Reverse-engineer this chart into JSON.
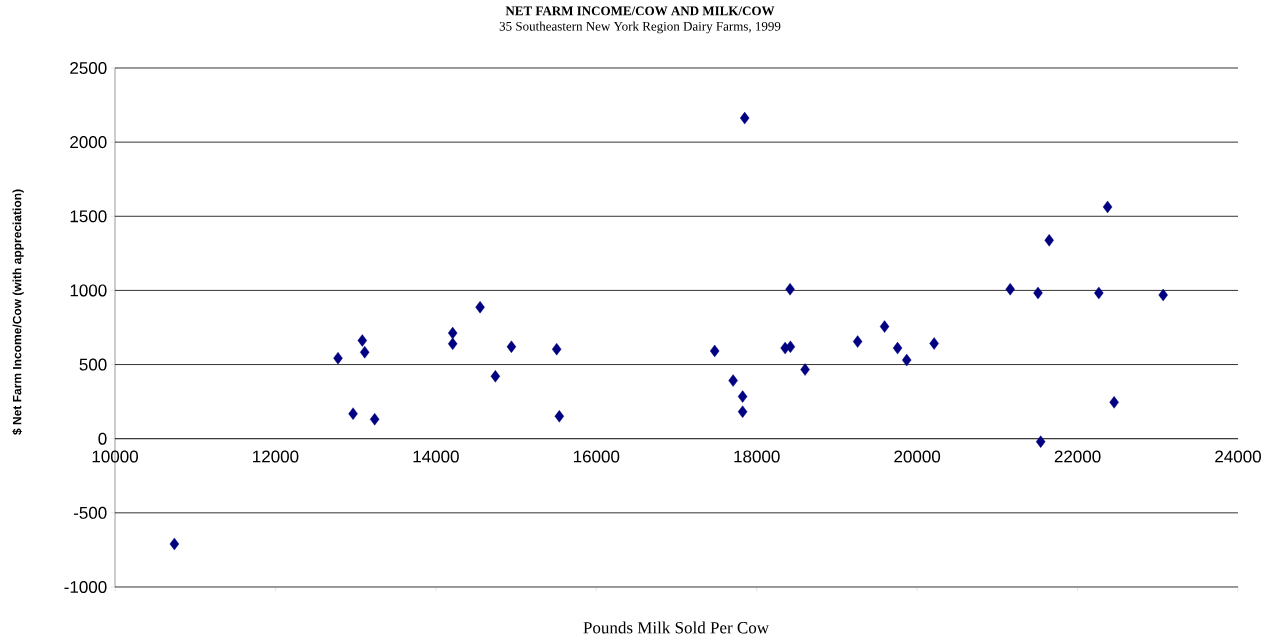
{
  "chart_data": {
    "type": "scatter",
    "title": "NET FARM INCOME/COW AND MILK/COW",
    "subtitle": "35 Southeastern New York Region Dairy Farms, 1999",
    "xlabel": "Pounds Milk Sold Per Cow",
    "ylabel": "$ Net Farm Income/Cow (with appreciation)",
    "x": [
      10740,
      12780,
      12968,
      13083,
      13113,
      13237,
      14210,
      14210,
      14551,
      14742,
      14942,
      15506,
      15539,
      17476,
      17706,
      17824,
      17824,
      17850,
      18354,
      18420,
      18416,
      18603,
      19258,
      19594,
      19756,
      19870,
      20212,
      21160,
      21507,
      21540,
      21646,
      22265,
      22374,
      22456,
      23067
    ],
    "values": [
      -710,
      543,
      169,
      662,
      583,
      131,
      712,
      640,
      887,
      421,
      620,
      604,
      151,
      592,
      392,
      284,
      182,
      2162,
      611,
      620,
      1008,
      466,
      655,
      756,
      611,
      530,
      642,
      1008,
      983,
      -20,
      1338,
      983,
      1563,
      245,
      969
    ],
    "color": "#000080",
    "marker": "diamond",
    "xlim": [
      10000,
      24000
    ],
    "xticks": [
      10000,
      12000,
      14000,
      16000,
      18000,
      20000,
      22000,
      24000
    ],
    "ylim": [
      -1000,
      2500
    ],
    "yticks": [
      -1000,
      -500,
      0,
      500,
      1000,
      1500,
      2000,
      2500
    ],
    "grid": "y"
  }
}
